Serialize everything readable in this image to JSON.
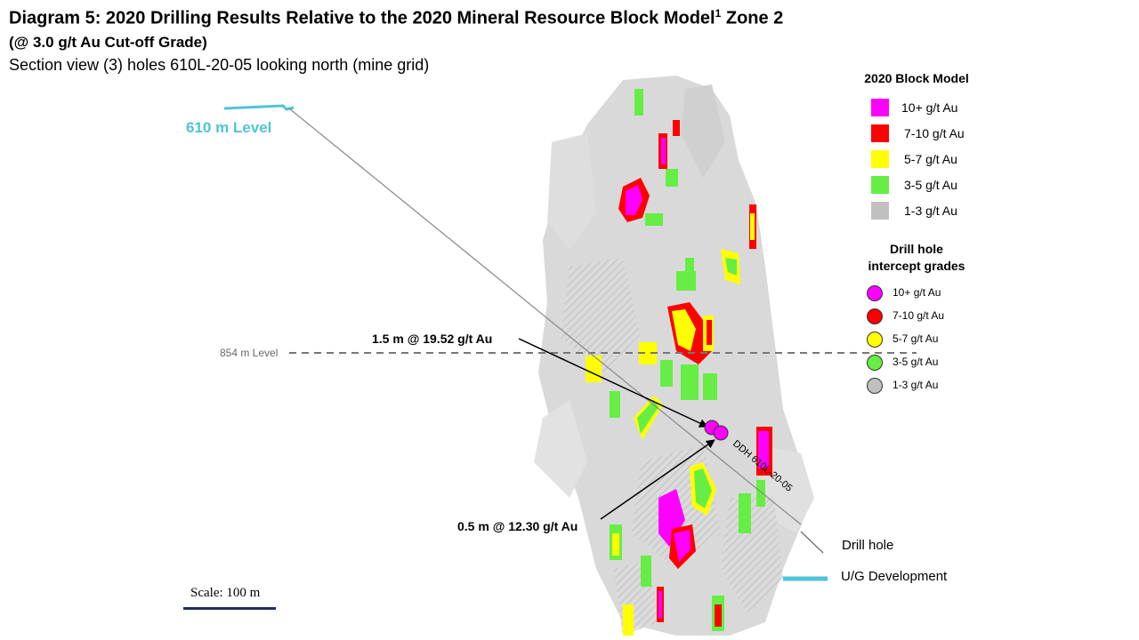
{
  "header": {
    "title": "Diagram 5: 2020 Drilling Results Relative to the 2020 Mineral Resource Block Model",
    "title_sup": "1",
    "title_suffix": " Zone 2",
    "subtitle": "(@ 3.0 g/t Au Cut-off Grade)",
    "section": "Section view (3) holes 610L-20-05 looking north (mine grid)"
  },
  "labels": {
    "level_610": "610 m Level",
    "level_854": "854 m Level",
    "intercept_1": "1.5 m @ 19.52 g/t Au",
    "intercept_2": "0.5 m @ 12.30 g/t Au",
    "hole_id": "DDH 610L-20-05",
    "drill_hole": "Drill hole",
    "ug_development": "U/G Development",
    "scale": "Scale: 100 m"
  },
  "legend_block": {
    "title": "2020 Block Model",
    "items": [
      {
        "label": "10+ g/t Au",
        "color": "#ff00ff"
      },
      {
        "label": "7-10 g/t Au",
        "color": "#ff0000"
      },
      {
        "label": "5-7 g/t Au",
        "color": "#ffff00"
      },
      {
        "label": "3-5 g/t Au",
        "color": "#66ee44"
      },
      {
        "label": "1-3 g/t Au",
        "color": "#c0c0c0"
      }
    ]
  },
  "legend_drill": {
    "title_line1": "Drill hole",
    "title_line2": "intercept grades",
    "items": [
      {
        "label": "10+ g/t Au",
        "color": "#ff00ff"
      },
      {
        "label": "7-10 g/t Au",
        "color": "#ff0000"
      },
      {
        "label": "5-7 g/t Au",
        "color": "#ffff00"
      },
      {
        "label": "3-5 g/t Au",
        "color": "#66ee44"
      },
      {
        "label": "1-3 g/t Au",
        "color": "#c0c0c0"
      }
    ]
  },
  "colors": {
    "ug_development": "#4fc3d9",
    "level_line": "#777777",
    "intercept": "#ff00ff"
  }
}
